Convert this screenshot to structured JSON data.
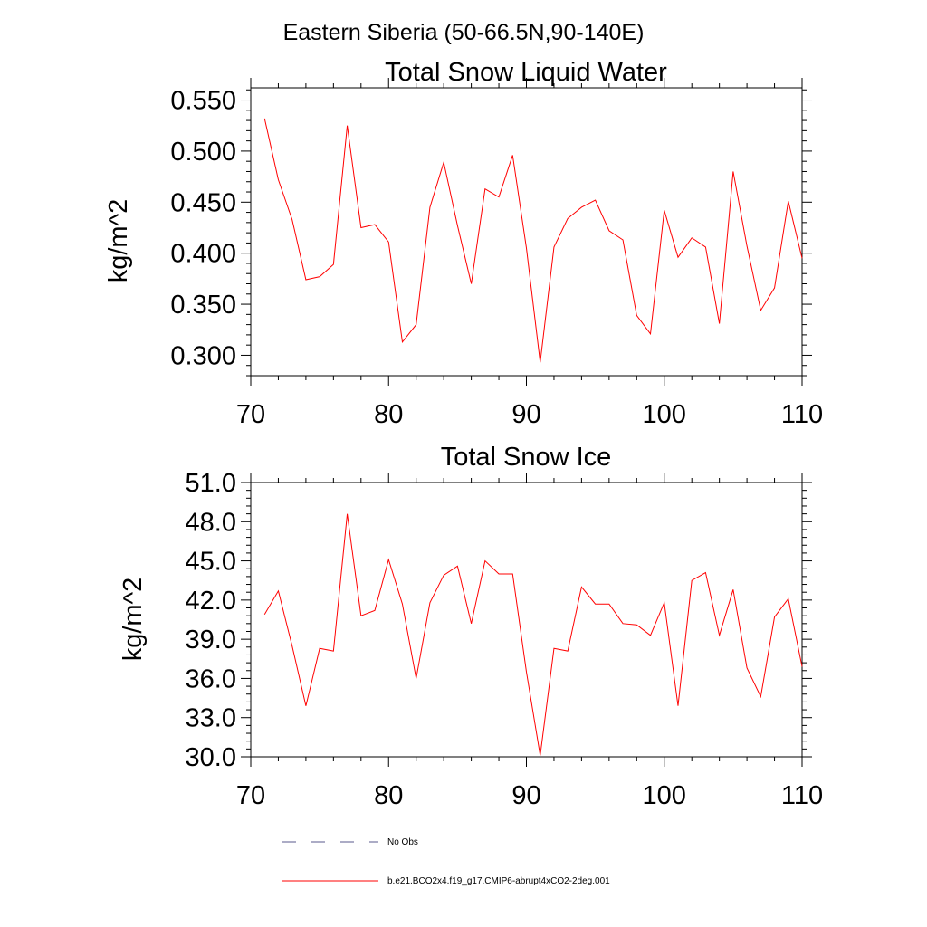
{
  "suptitle": "Eastern Siberia (50-66.5N,90-140E)",
  "chart_data": [
    {
      "type": "line",
      "title": "Total Snow Liquid Water",
      "xlabel": "",
      "ylabel": "kg/m^2",
      "xlim": [
        70,
        110
      ],
      "ylim": [
        0.28,
        0.562
      ],
      "xticks": [
        70,
        80,
        90,
        100,
        110
      ],
      "xtick_labels": [
        "70",
        "80",
        "90",
        "100",
        "110"
      ],
      "yticks": [
        0.3,
        0.35,
        0.4,
        0.45,
        0.5,
        0.55
      ],
      "ytick_labels": [
        "0.300",
        "0.350",
        "0.400",
        "0.450",
        "0.500",
        "0.550"
      ],
      "x": [
        71,
        72,
        73,
        74,
        75,
        76,
        77,
        78,
        79,
        80,
        81,
        82,
        83,
        84,
        85,
        86,
        87,
        88,
        89,
        90,
        91,
        92,
        93,
        94,
        95,
        96,
        97,
        98,
        99,
        100,
        101,
        102,
        103,
        104,
        105,
        106,
        107,
        108,
        109,
        110
      ],
      "series": [
        {
          "name": "b.e21.BCO2x4.f19_g17.CMIP6-abrupt4xCO2-2deg.001",
          "color": "#ff0000",
          "values": [
            0.532,
            0.472,
            0.433,
            0.374,
            0.377,
            0.389,
            0.525,
            0.425,
            0.428,
            0.411,
            0.313,
            0.33,
            0.445,
            0.489,
            0.427,
            0.37,
            0.463,
            0.455,
            0.496,
            0.405,
            0.293,
            0.406,
            0.434,
            0.445,
            0.452,
            0.422,
            0.413,
            0.339,
            0.321,
            0.442,
            0.396,
            0.415,
            0.406,
            0.331,
            0.48,
            0.407,
            0.344,
            0.366,
            0.451,
            0.395
          ]
        }
      ]
    },
    {
      "type": "line",
      "title": "Total Snow Ice",
      "xlabel": "",
      "ylabel": "kg/m^2",
      "xlim": [
        70,
        110
      ],
      "ylim": [
        30.0,
        51.0
      ],
      "xticks": [
        70,
        80,
        90,
        100,
        110
      ],
      "xtick_labels": [
        "70",
        "80",
        "90",
        "100",
        "110"
      ],
      "yticks": [
        30,
        33,
        36,
        39,
        42,
        45,
        48,
        51
      ],
      "ytick_labels": [
        "30.0",
        "33.0",
        "36.0",
        "39.0",
        "42.0",
        "45.0",
        "48.0",
        "51.0"
      ],
      "x": [
        71,
        72,
        73,
        74,
        75,
        76,
        77,
        78,
        79,
        80,
        81,
        82,
        83,
        84,
        85,
        86,
        87,
        88,
        89,
        90,
        91,
        92,
        93,
        94,
        95,
        96,
        97,
        98,
        99,
        100,
        101,
        102,
        103,
        104,
        105,
        106,
        107,
        108,
        109,
        110
      ],
      "series": [
        {
          "name": "b.e21.BCO2x4.f19_g17.CMIP6-abrupt4xCO2-2deg.001",
          "color": "#ff0000",
          "values": [
            40.9,
            42.7,
            38.5,
            33.9,
            38.3,
            38.1,
            48.6,
            40.8,
            41.2,
            45.1,
            41.7,
            36.0,
            41.8,
            43.9,
            44.6,
            40.2,
            45.0,
            44.0,
            44.0,
            36.5,
            30.1,
            38.3,
            38.1,
            43.0,
            41.7,
            41.7,
            40.2,
            40.1,
            39.3,
            41.8,
            33.9,
            43.5,
            44.1,
            39.3,
            42.8,
            36.8,
            34.6,
            40.7,
            42.1,
            36.9
          ]
        }
      ]
    }
  ],
  "legend": [
    {
      "label": "No Obs",
      "color": "#5a5a8c",
      "style": "dashed"
    },
    {
      "label": "b.e21.BCO2x4.f19_g17.CMIP6-abrupt4xCO2-2deg.001",
      "color": "#ff0000",
      "style": "solid"
    }
  ]
}
